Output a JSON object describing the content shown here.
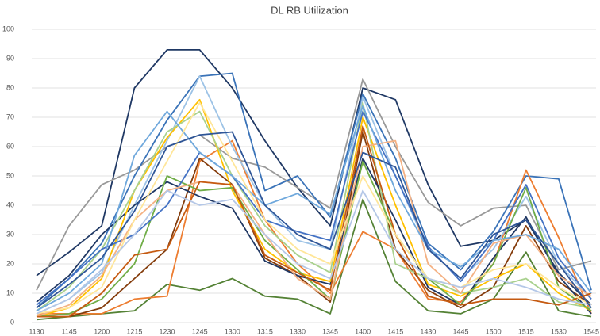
{
  "chart_data": {
    "type": "line",
    "title": "DL RB Utilization",
    "categories": [
      "1130",
      "1145",
      "1200",
      "1215",
      "1230",
      "1245",
      "1300",
      "1315",
      "1330",
      "1345",
      "1400",
      "1415",
      "1430",
      "1445",
      "1500",
      "1515",
      "1530",
      "1545"
    ],
    "ylim": [
      0,
      100
    ],
    "yticks": [
      0,
      10,
      20,
      30,
      40,
      50,
      60,
      70,
      80,
      90,
      100
    ],
    "grid": true,
    "series": [
      {
        "color": "#1f3864",
        "values": [
          16,
          24,
          33,
          80,
          93,
          93,
          80,
          62,
          46,
          33,
          80,
          76,
          47,
          26,
          28,
          35,
          17,
          6
        ]
      },
      {
        "color": "#999999",
        "values": [
          11,
          33,
          47,
          52,
          60,
          64,
          56,
          53,
          46,
          39,
          83,
          60,
          41,
          33,
          39,
          40,
          18,
          21
        ]
      },
      {
        "color": "#3a73b8",
        "values": [
          5,
          15,
          27,
          50,
          69,
          84,
          85,
          45,
          50,
          36,
          78,
          56,
          27,
          18,
          31,
          50,
          49,
          11
        ]
      },
      {
        "color": "#548235",
        "values": [
          1,
          2,
          3,
          4,
          13,
          11,
          15,
          9,
          8,
          3,
          42,
          14,
          4,
          3,
          8,
          24,
          4,
          2
        ]
      },
      {
        "color": "#ed7d31",
        "values": [
          3,
          3,
          3,
          8,
          9,
          55,
          62,
          35,
          20,
          10,
          31,
          25,
          8,
          7,
          20,
          52,
          29,
          3
        ]
      },
      {
        "color": "#9dc3e6",
        "values": [
          3,
          8,
          17,
          40,
          62,
          84,
          60,
          40,
          28,
          25,
          77,
          50,
          25,
          15,
          25,
          43,
          20,
          8
        ]
      },
      {
        "color": "#843c0c",
        "values": [
          2,
          2,
          5,
          15,
          25,
          56,
          47,
          22,
          16,
          7,
          65,
          25,
          11,
          5,
          12,
          33,
          14,
          6
        ]
      },
      {
        "color": "#203864",
        "values": [
          7,
          16,
          30,
          40,
          48,
          43,
          39,
          21,
          16,
          13,
          56,
          35,
          12,
          6,
          22,
          36,
          16,
          3
        ]
      },
      {
        "color": "#ffc000",
        "values": [
          2,
          5,
          15,
          45,
          63,
          76,
          45,
          25,
          17,
          14,
          70,
          40,
          13,
          9,
          15,
          20,
          10,
          4
        ]
      },
      {
        "color": "#a9d18e",
        "values": [
          4,
          12,
          25,
          45,
          65,
          72,
          50,
          33,
          23,
          17,
          75,
          20,
          15,
          10,
          12,
          15,
          7,
          5
        ]
      },
      {
        "color": "#70ad47",
        "values": [
          2,
          3,
          8,
          20,
          50,
          45,
          46,
          28,
          18,
          8,
          55,
          30,
          15,
          6,
          20,
          46,
          12,
          4
        ]
      },
      {
        "color": "#4472c4",
        "values": [
          6,
          15,
          25,
          30,
          40,
          58,
          50,
          35,
          31,
          28,
          72,
          50,
          26,
          14,
          28,
          47,
          22,
          8
        ]
      },
      {
        "color": "#f4b183",
        "values": [
          2,
          6,
          16,
          35,
          45,
          48,
          47,
          30,
          15,
          8,
          60,
          62,
          20,
          10,
          27,
          30,
          16,
          9
        ]
      },
      {
        "color": "#c55a11",
        "values": [
          2,
          2,
          10,
          23,
          25,
          48,
          47,
          23,
          17,
          11,
          67,
          30,
          9,
          6,
          8,
          8,
          6,
          10
        ]
      },
      {
        "color": "#6fa8dc",
        "values": [
          4,
          10,
          20,
          57,
          72,
          58,
          50,
          40,
          44,
          37,
          74,
          45,
          25,
          19,
          28,
          30,
          25,
          10
        ]
      },
      {
        "color": "#ffe699",
        "values": [
          3,
          5,
          12,
          35,
          55,
          75,
          55,
          35,
          25,
          20,
          50,
          30,
          15,
          12,
          18,
          20,
          12,
          6
        ]
      },
      {
        "color": "#b4c7e7",
        "values": [
          3,
          8,
          18,
          30,
          45,
          40,
          42,
          30,
          20,
          15,
          45,
          25,
          15,
          12,
          15,
          12,
          8,
          6
        ]
      },
      {
        "color": "#2e5597",
        "values": [
          5,
          13,
          22,
          38,
          60,
          64,
          65,
          40,
          30,
          25,
          58,
          53,
          25,
          15,
          30,
          35,
          20,
          5
        ]
      }
    ]
  }
}
